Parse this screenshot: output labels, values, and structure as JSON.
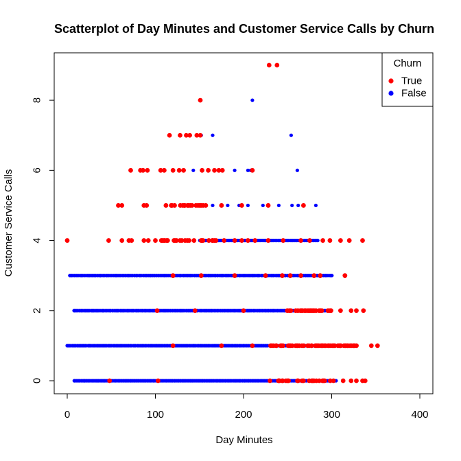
{
  "chart_data": {
    "type": "scatter",
    "title": "Scatterplot of Day Minutes and Customer Service Calls by Churn",
    "xlabel": "Day Minutes",
    "ylabel": "Customer Service Calls",
    "xlim": [
      0,
      400
    ],
    "ylim": [
      0,
      9
    ],
    "x_ticks": [
      "0",
      "100",
      "200",
      "300",
      "400"
    ],
    "y_ticks": [
      "0",
      "2",
      "4",
      "6",
      "8"
    ],
    "grid": false,
    "legend": {
      "title": "Churn",
      "placement": "top-right",
      "entries": [
        {
          "label": "True",
          "color": "#ff0000"
        },
        {
          "label": "False",
          "color": "#0000ff"
        }
      ]
    },
    "series": [
      {
        "name": "False",
        "color": "#0000ff",
        "bands": [
          {
            "y": 0,
            "xmin": 8,
            "xmax": 305
          },
          {
            "y": 1,
            "xmin": 0,
            "xmax": 315
          },
          {
            "y": 2,
            "xmin": 8,
            "xmax": 300
          },
          {
            "y": 3,
            "xmin": 3,
            "xmax": 300
          },
          {
            "y": 4,
            "xmin": 150,
            "xmax": 285
          }
        ],
        "points": [
          {
            "x": 0,
            "y": 1
          },
          {
            "x": 8,
            "y": 0
          },
          {
            "x": 20,
            "y": 0
          },
          {
            "x": 35,
            "y": 0
          },
          {
            "x": 42,
            "y": 0
          },
          {
            "x": 18,
            "y": 1
          },
          {
            "x": 25,
            "y": 1
          },
          {
            "x": 8,
            "y": 2
          },
          {
            "x": 30,
            "y": 2
          },
          {
            "x": 40,
            "y": 2
          },
          {
            "x": 3,
            "y": 3
          },
          {
            "x": 28,
            "y": 3
          },
          {
            "x": 38,
            "y": 3
          },
          {
            "x": 165,
            "y": 5
          },
          {
            "x": 182,
            "y": 5
          },
          {
            "x": 195,
            "y": 5
          },
          {
            "x": 205,
            "y": 5
          },
          {
            "x": 222,
            "y": 5
          },
          {
            "x": 240,
            "y": 5
          },
          {
            "x": 255,
            "y": 5
          },
          {
            "x": 262,
            "y": 5
          },
          {
            "x": 282,
            "y": 5
          },
          {
            "x": 143,
            "y": 6
          },
          {
            "x": 190,
            "y": 6
          },
          {
            "x": 205,
            "y": 6
          },
          {
            "x": 208,
            "y": 6
          },
          {
            "x": 261,
            "y": 6
          },
          {
            "x": 152,
            "y": 7
          },
          {
            "x": 165,
            "y": 7
          },
          {
            "x": 254,
            "y": 7
          },
          {
            "x": 210,
            "y": 8
          },
          {
            "x": 300,
            "y": 3
          },
          {
            "x": 298,
            "y": 2
          },
          {
            "x": 305,
            "y": 0
          }
        ]
      },
      {
        "name": "True",
        "color": "#ff0000",
        "bands": [
          {
            "y": 0,
            "xmin": 240,
            "xmax": 300
          },
          {
            "y": 1,
            "xmin": 230,
            "xmax": 330
          },
          {
            "y": 2,
            "xmin": 250,
            "xmax": 300
          },
          {
            "y": 4,
            "xmin": 105,
            "xmax": 170
          },
          {
            "y": 5,
            "xmin": 118,
            "xmax": 160
          }
        ],
        "points": [
          {
            "x": 48,
            "y": 0
          },
          {
            "x": 103,
            "y": 0
          },
          {
            "x": 230,
            "y": 0
          },
          {
            "x": 240,
            "y": 0
          },
          {
            "x": 302,
            "y": 0
          },
          {
            "x": 313,
            "y": 0
          },
          {
            "x": 322,
            "y": 0
          },
          {
            "x": 328,
            "y": 0
          },
          {
            "x": 335,
            "y": 0
          },
          {
            "x": 338,
            "y": 0
          },
          {
            "x": 120,
            "y": 1
          },
          {
            "x": 175,
            "y": 1
          },
          {
            "x": 210,
            "y": 1
          },
          {
            "x": 310,
            "y": 1
          },
          {
            "x": 318,
            "y": 1
          },
          {
            "x": 326,
            "y": 1
          },
          {
            "x": 345,
            "y": 1
          },
          {
            "x": 352,
            "y": 1
          },
          {
            "x": 102,
            "y": 2
          },
          {
            "x": 145,
            "y": 2
          },
          {
            "x": 200,
            "y": 2
          },
          {
            "x": 310,
            "y": 2
          },
          {
            "x": 322,
            "y": 2
          },
          {
            "x": 328,
            "y": 2
          },
          {
            "x": 336,
            "y": 2
          },
          {
            "x": 120,
            "y": 3
          },
          {
            "x": 152,
            "y": 3
          },
          {
            "x": 190,
            "y": 3
          },
          {
            "x": 225,
            "y": 3
          },
          {
            "x": 244,
            "y": 3
          },
          {
            "x": 253,
            "y": 3
          },
          {
            "x": 265,
            "y": 3
          },
          {
            "x": 280,
            "y": 3
          },
          {
            "x": 287,
            "y": 3
          },
          {
            "x": 315,
            "y": 3
          },
          {
            "x": 0,
            "y": 4
          },
          {
            "x": 47,
            "y": 4
          },
          {
            "x": 62,
            "y": 4
          },
          {
            "x": 70,
            "y": 4
          },
          {
            "x": 73,
            "y": 4
          },
          {
            "x": 87,
            "y": 4
          },
          {
            "x": 92,
            "y": 4
          },
          {
            "x": 100,
            "y": 4
          },
          {
            "x": 178,
            "y": 4
          },
          {
            "x": 190,
            "y": 4
          },
          {
            "x": 198,
            "y": 4
          },
          {
            "x": 205,
            "y": 4
          },
          {
            "x": 213,
            "y": 4
          },
          {
            "x": 228,
            "y": 4
          },
          {
            "x": 245,
            "y": 4
          },
          {
            "x": 265,
            "y": 4
          },
          {
            "x": 275,
            "y": 4
          },
          {
            "x": 290,
            "y": 4
          },
          {
            "x": 298,
            "y": 4
          },
          {
            "x": 310,
            "y": 4
          },
          {
            "x": 320,
            "y": 4
          },
          {
            "x": 335,
            "y": 4
          },
          {
            "x": 58,
            "y": 5
          },
          {
            "x": 62,
            "y": 5
          },
          {
            "x": 87,
            "y": 5
          },
          {
            "x": 90,
            "y": 5
          },
          {
            "x": 112,
            "y": 5
          },
          {
            "x": 175,
            "y": 5
          },
          {
            "x": 198,
            "y": 5
          },
          {
            "x": 228,
            "y": 5
          },
          {
            "x": 268,
            "y": 5
          },
          {
            "x": 72,
            "y": 6
          },
          {
            "x": 83,
            "y": 6
          },
          {
            "x": 86,
            "y": 6
          },
          {
            "x": 91,
            "y": 6
          },
          {
            "x": 106,
            "y": 6
          },
          {
            "x": 110,
            "y": 6
          },
          {
            "x": 120,
            "y": 6
          },
          {
            "x": 127,
            "y": 6
          },
          {
            "x": 132,
            "y": 6
          },
          {
            "x": 153,
            "y": 6
          },
          {
            "x": 160,
            "y": 6
          },
          {
            "x": 167,
            "y": 6
          },
          {
            "x": 172,
            "y": 6
          },
          {
            "x": 176,
            "y": 6
          },
          {
            "x": 210,
            "y": 6
          },
          {
            "x": 116,
            "y": 7
          },
          {
            "x": 128,
            "y": 7
          },
          {
            "x": 135,
            "y": 7
          },
          {
            "x": 139,
            "y": 7
          },
          {
            "x": 147,
            "y": 7
          },
          {
            "x": 151,
            "y": 7
          },
          {
            "x": 151,
            "y": 8
          },
          {
            "x": 229,
            "y": 9
          },
          {
            "x": 238,
            "y": 9
          }
        ]
      }
    ]
  }
}
